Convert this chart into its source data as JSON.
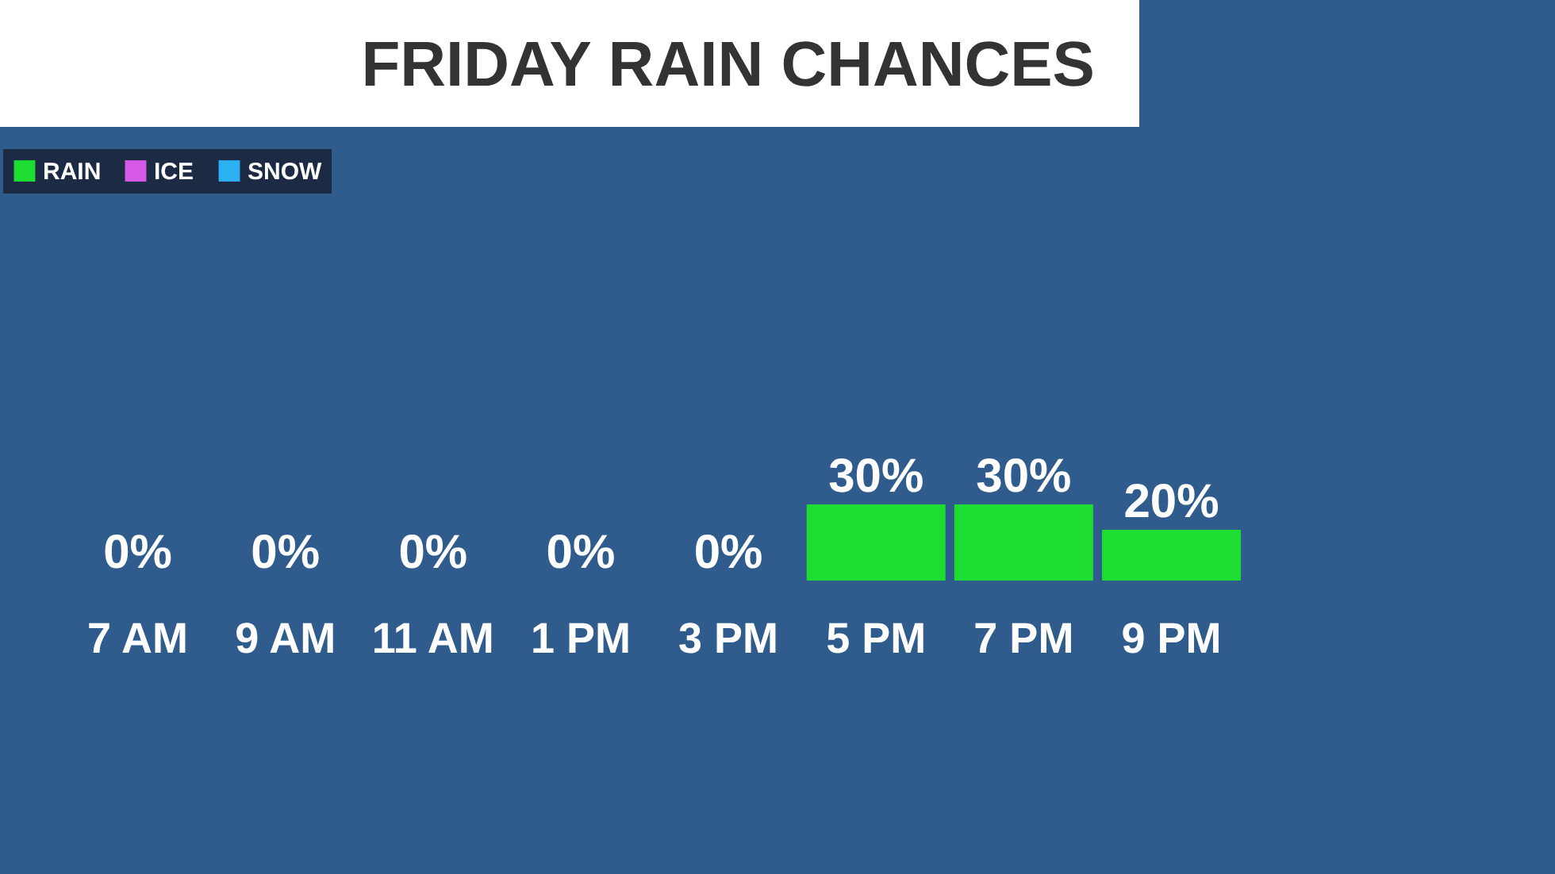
{
  "chart_data": {
    "type": "bar",
    "title": "FRIDAY RAIN CHANCES",
    "categories": [
      "7 AM",
      "9 AM",
      "11 AM",
      "1 PM",
      "3 PM",
      "5 PM",
      "7 PM",
      "9 PM"
    ],
    "series": [
      {
        "name": "RAIN",
        "color": "#1ddd33",
        "values": [
          0,
          0,
          0,
          0,
          0,
          30,
          30,
          20
        ],
        "value_labels": [
          "0%",
          "0%",
          "0%",
          "0%",
          "0%",
          "30%",
          "30%",
          "20%"
        ]
      },
      {
        "name": "ICE",
        "color": "#d65ae6",
        "values": [
          null,
          null,
          null,
          null,
          null,
          null,
          null,
          null
        ]
      },
      {
        "name": "SNOW",
        "color": "#2bb0f2",
        "values": [
          null,
          null,
          null,
          null,
          null,
          null,
          null,
          null
        ]
      }
    ],
    "legend": "top left",
    "tick_labels": "x"
  }
}
